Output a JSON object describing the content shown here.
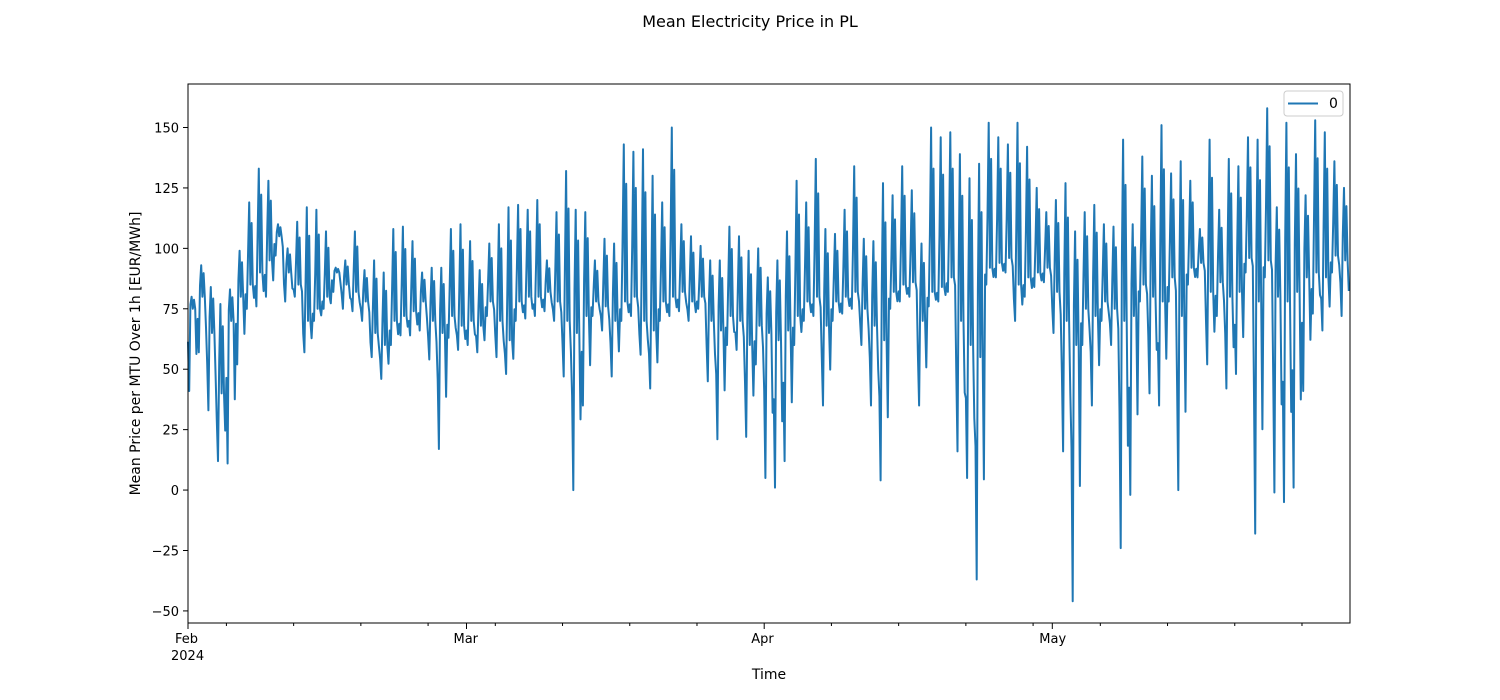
{
  "chart_data": {
    "type": "line",
    "title": "Mean Electricity Price in PL",
    "xlabel": "Time",
    "ylabel": "Mean Price per MTU Over 1h [EUR/MWh]",
    "xlim": [
      "2024-02-01",
      "2024-05-31"
    ],
    "ylim": [
      -55,
      168
    ],
    "y_ticks": [
      -50,
      -25,
      0,
      25,
      50,
      75,
      100,
      125,
      150
    ],
    "y_tick_labels": [
      "−50",
      "−25",
      "0",
      "25",
      "50",
      "75",
      "100",
      "125",
      "150"
    ],
    "x_major_ticks": [
      {
        "date": "2024-02-01",
        "label": "Feb",
        "sublabel": "2024"
      },
      {
        "date": "2024-03-01",
        "label": "Mar",
        "sublabel": ""
      },
      {
        "date": "2024-04-01",
        "label": "Apr",
        "sublabel": ""
      },
      {
        "date": "2024-05-01",
        "label": "May",
        "sublabel": ""
      }
    ],
    "x_minor_ticks": [
      "2024-02-05",
      "2024-02-12",
      "2024-02-19",
      "2024-02-26",
      "2024-03-04",
      "2024-03-11",
      "2024-03-18",
      "2024-03-25",
      "2024-04-08",
      "2024-04-15",
      "2024-04-22",
      "2024-04-29",
      "2024-05-06",
      "2024-05-13",
      "2024-05-20",
      "2024-05-27"
    ],
    "grid": false,
    "legend": {
      "position": "top-right"
    },
    "series": [
      {
        "name": "0",
        "color": "#1f77b4",
        "x": [
          "2024-02-01",
          "2024-02-02",
          "2024-02-03",
          "2024-02-04",
          "2024-02-05",
          "2024-02-06",
          "2024-02-07",
          "2024-02-08",
          "2024-02-09",
          "2024-02-10",
          "2024-02-11",
          "2024-02-12",
          "2024-02-13",
          "2024-02-14",
          "2024-02-15",
          "2024-02-16",
          "2024-02-17",
          "2024-02-18",
          "2024-02-19",
          "2024-02-20",
          "2024-02-21",
          "2024-02-22",
          "2024-02-23",
          "2024-02-24",
          "2024-02-25",
          "2024-02-26",
          "2024-02-27",
          "2024-02-28",
          "2024-02-29",
          "2024-03-01",
          "2024-03-02",
          "2024-03-03",
          "2024-03-04",
          "2024-03-05",
          "2024-03-06",
          "2024-03-07",
          "2024-03-08",
          "2024-03-09",
          "2024-03-10",
          "2024-03-11",
          "2024-03-12",
          "2024-03-13",
          "2024-03-14",
          "2024-03-15",
          "2024-03-16",
          "2024-03-17",
          "2024-03-18",
          "2024-03-19",
          "2024-03-20",
          "2024-03-21",
          "2024-03-22",
          "2024-03-23",
          "2024-03-24",
          "2024-03-25",
          "2024-03-26",
          "2024-03-27",
          "2024-03-28",
          "2024-03-29",
          "2024-03-30",
          "2024-03-31",
          "2024-04-01",
          "2024-04-02",
          "2024-04-03",
          "2024-04-04",
          "2024-04-05",
          "2024-04-06",
          "2024-04-07",
          "2024-04-08",
          "2024-04-09",
          "2024-04-10",
          "2024-04-11",
          "2024-04-12",
          "2024-04-13",
          "2024-04-14",
          "2024-04-15",
          "2024-04-16",
          "2024-04-17",
          "2024-04-18",
          "2024-04-19",
          "2024-04-20",
          "2024-04-21",
          "2024-04-22",
          "2024-04-23",
          "2024-04-24",
          "2024-04-25",
          "2024-04-26",
          "2024-04-27",
          "2024-04-28",
          "2024-04-29",
          "2024-04-30",
          "2024-05-01",
          "2024-05-02",
          "2024-05-03",
          "2024-05-04",
          "2024-05-05",
          "2024-05-06",
          "2024-05-07",
          "2024-05-08",
          "2024-05-09",
          "2024-05-10",
          "2024-05-11",
          "2024-05-12",
          "2024-05-13",
          "2024-05-14",
          "2024-05-15",
          "2024-05-16",
          "2024-05-17",
          "2024-05-18",
          "2024-05-19",
          "2024-05-20",
          "2024-05-21",
          "2024-05-22",
          "2024-05-23",
          "2024-05-24",
          "2024-05-25",
          "2024-05-26",
          "2024-05-27",
          "2024-05-28",
          "2024-05-29",
          "2024-05-30",
          "2024-05-31"
        ],
        "low": [
          41,
          57,
          33,
          12,
          11,
          52,
          75,
          76,
          80,
          97,
          78,
          80,
          57,
          70,
          75,
          82,
          75,
          74,
          70,
          55,
          46,
          60,
          64,
          64,
          66,
          54,
          17,
          63,
          58,
          60,
          57,
          72,
          55,
          48,
          70,
          71,
          72,
          74,
          70,
          47,
          0,
          35,
          72,
          66,
          47,
          70,
          72,
          56,
          42,
          70,
          72,
          74,
          70,
          75,
          45,
          21,
          60,
          58,
          22,
          52,
          5,
          1,
          12,
          60,
          70,
          72,
          35,
          70,
          73,
          75,
          60,
          35,
          4,
          75,
          78,
          80,
          35,
          76,
          78,
          82,
          16,
          5,
          -37,
          85,
          88,
          90,
          70,
          80,
          84,
          86,
          65,
          16,
          -46,
          60,
          35,
          70,
          60,
          -24,
          -2,
          78,
          40,
          35,
          78,
          0,
          85,
          88,
          52,
          72,
          42,
          48,
          90,
          -18,
          88,
          -1,
          -5,
          1,
          41,
          73,
          66,
          90,
          72
        ],
        "base": [
          75,
          80,
          65,
          40,
          70,
          80,
          85,
          90,
          95,
          105,
          90,
          85,
          70,
          75,
          80,
          90,
          85,
          82,
          78,
          65,
          60,
          70,
          72,
          74,
          78,
          70,
          65,
          72,
          68,
          70,
          68,
          78,
          70,
          62,
          78,
          80,
          80,
          82,
          78,
          70,
          65,
          72,
          78,
          76,
          70,
          78,
          80,
          70,
          66,
          78,
          80,
          82,
          78,
          80,
          70,
          66,
          72,
          70,
          60,
          68,
          65,
          62,
          66,
          72,
          78,
          80,
          68,
          78,
          80,
          82,
          75,
          68,
          62,
          82,
          85,
          86,
          70,
          82,
          84,
          88,
          70,
          60,
          55,
          92,
          94,
          96,
          85,
          88,
          90,
          92,
          82,
          70,
          60,
          75,
          72,
          78,
          75,
          70,
          72,
          85,
          80,
          78,
          88,
          72,
          92,
          94,
          82,
          86,
          80,
          82,
          96,
          78,
          95,
          80,
          78,
          82,
          88,
          90,
          88,
          97,
          95
        ],
        "high": [
          80,
          93,
          84,
          77,
          83,
          99,
          119,
          133,
          128,
          110,
          100,
          111,
          117,
          116,
          107,
          92,
          95,
          107,
          91,
          95,
          90,
          108,
          109,
          103,
          90,
          92,
          92,
          108,
          110,
          103,
          91,
          102,
          110,
          117,
          118,
          116,
          120,
          95,
          115,
          132,
          116,
          115,
          95,
          104,
          102,
          143,
          140,
          141,
          130,
          119,
          150,
          110,
          105,
          101,
          95,
          95,
          109,
          105,
          99,
          100,
          88,
          95,
          107,
          128,
          119,
          137,
          108,
          106,
          116,
          134,
          104,
          103,
          127,
          122,
          134,
          124,
          102,
          150,
          146,
          148,
          139,
          129,
          135,
          152,
          146,
          143,
          152,
          142,
          125,
          115,
          120,
          127,
          107,
          115,
          118,
          110,
          109,
          145,
          110,
          138,
          130,
          151,
          131,
          136,
          128,
          108,
          145,
          116,
          137,
          134,
          146,
          145,
          158,
          117,
          152,
          139,
          122,
          153,
          148,
          136,
          125
        ]
      }
    ]
  }
}
